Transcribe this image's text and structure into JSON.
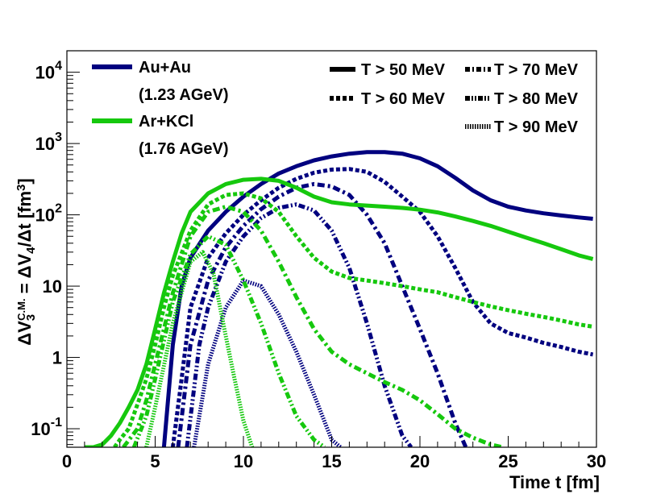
{
  "chart_data": {
    "type": "line",
    "xlabel": "Time t [fm]",
    "ylabel": {
      "prefix": "ΔV",
      "sub": "3",
      "sup": "C.M.",
      "middle": " = ΔV",
      "sub2": "4",
      "suffix": "/Δt [fm",
      "sup2": "3",
      "close": "]"
    },
    "xlim": [
      0,
      30
    ],
    "ylim": [
      0.055,
      20000
    ],
    "yscale": "log",
    "x_ticks": [
      "0",
      "5",
      "10",
      "15",
      "20",
      "25",
      "30"
    ],
    "y_ticks": [
      {
        "value": 0.1,
        "base": "10",
        "exp": "-1"
      },
      {
        "value": 1,
        "base": "1",
        "exp": ""
      },
      {
        "value": 10,
        "base": "10",
        "exp": ""
      },
      {
        "value": 100,
        "base": "10",
        "exp": "2"
      },
      {
        "value": 1000,
        "base": "10",
        "exp": "3"
      },
      {
        "value": 10000,
        "base": "10",
        "exp": "4"
      }
    ],
    "colors": {
      "auau": "#00007f",
      "arkcl": "#16c80e"
    },
    "legend_systems": [
      {
        "name": "Au+Au",
        "energy": "(1.23 AGeV)",
        "color": "#00007f"
      },
      {
        "name": "Ar+KCl",
        "energy": "(1.76 AGeV)",
        "color": "#16c80e"
      }
    ],
    "legend_thresholds": [
      {
        "label": "T > 50 MeV",
        "dash": "solid"
      },
      {
        "label": "T > 70 MeV",
        "dash": "dashdot"
      },
      {
        "label": "T > 60 MeV",
        "dash": "dash"
      },
      {
        "label": "T > 80 MeV",
        "dash": "dashdotdot"
      },
      {
        "label": "T > 90 MeV",
        "dash": "dot"
      }
    ],
    "series": [
      {
        "name": "Au+Au T > 50 MeV",
        "system": "auau",
        "dash": "solid",
        "x": [
          5.5,
          6,
          6.5,
          7,
          8,
          9,
          10,
          11,
          12,
          13,
          14,
          15,
          16,
          17,
          18,
          19,
          20,
          21,
          22,
          23,
          24,
          25,
          26,
          27,
          28,
          29,
          29.8
        ],
        "y": [
          0.055,
          1.5,
          10,
          25,
          60,
          110,
          180,
          270,
          380,
          480,
          580,
          660,
          720,
          760,
          760,
          720,
          620,
          480,
          330,
          220,
          160,
          130,
          115,
          105,
          98,
          92,
          88
        ]
      },
      {
        "name": "Au+Au T > 60 MeV",
        "system": "auau",
        "dash": "dash",
        "x": [
          6,
          6.5,
          7,
          8,
          9,
          10,
          11,
          12,
          13,
          14,
          15,
          16,
          17,
          18,
          19,
          20,
          21,
          22,
          23,
          24,
          25,
          26,
          27,
          28,
          29,
          29.8
        ],
        "y": [
          0.055,
          0.5,
          5,
          25,
          55,
          100,
          160,
          240,
          320,
          390,
          430,
          440,
          400,
          290,
          180,
          110,
          50,
          18,
          6,
          3,
          2.2,
          1.9,
          1.6,
          1.4,
          1.2,
          1.1
        ]
      },
      {
        "name": "Au+Au T > 70 MeV",
        "system": "auau",
        "dash": "dashdot",
        "x": [
          6.3,
          7,
          8,
          9,
          10,
          11,
          12,
          13,
          14,
          15,
          16,
          17,
          18,
          19,
          20,
          21,
          22,
          22.6
        ],
        "y": [
          0.055,
          1.5,
          12,
          35,
          70,
          120,
          180,
          240,
          270,
          250,
          190,
          100,
          40,
          10,
          2.5,
          0.6,
          0.12,
          0.055
        ]
      },
      {
        "name": "Au+Au T > 80 MeV",
        "system": "auau",
        "dash": "dashdotdot",
        "x": [
          6.8,
          7.5,
          8,
          9,
          10,
          11,
          12,
          13,
          14,
          15,
          16,
          17,
          18,
          19,
          19.5
        ],
        "y": [
          0.055,
          1.5,
          5,
          22,
          50,
          90,
          125,
          140,
          115,
          60,
          18,
          3,
          0.4,
          0.08,
          0.055
        ]
      },
      {
        "name": "Au+Au T > 90 MeV",
        "system": "auau",
        "dash": "dot",
        "x": [
          7.2,
          8,
          9,
          10,
          11,
          12,
          13,
          14,
          15,
          15.5
        ],
        "y": [
          0.055,
          0.8,
          5,
          12,
          10,
          4,
          1.2,
          0.3,
          0.07,
          0.055
        ]
      },
      {
        "name": "Ar+KCl T > 50 MeV",
        "system": "arkcl",
        "dash": "solid",
        "x": [
          1,
          1.5,
          2,
          2.5,
          3,
          3.5,
          4,
          4.5,
          5,
          5.5,
          6,
          6.5,
          7,
          8,
          9,
          10,
          11,
          12,
          13,
          14,
          15,
          16,
          17,
          18,
          19,
          20,
          21,
          22,
          23,
          24,
          25,
          26,
          27,
          28,
          29,
          29.8
        ],
        "y": [
          0.055,
          0.055,
          0.06,
          0.08,
          0.12,
          0.2,
          0.35,
          0.8,
          2.5,
          8,
          22,
          55,
          110,
          200,
          270,
          310,
          320,
          300,
          240,
          180,
          150,
          140,
          135,
          130,
          125,
          118,
          108,
          95,
          82,
          70,
          58,
          48,
          40,
          33,
          27,
          24
        ]
      },
      {
        "name": "Ar+KCl T > 60 MeV",
        "system": "arkcl",
        "dash": "dash",
        "x": [
          2.7,
          3,
          3.5,
          4,
          4.5,
          5,
          5.5,
          6,
          7,
          8,
          9,
          10,
          11,
          12,
          13,
          14,
          15,
          16,
          17,
          18,
          19,
          20,
          21,
          22,
          23,
          24,
          25,
          26,
          27,
          28,
          29,
          29.8
        ],
        "y": [
          0.055,
          0.07,
          0.1,
          0.22,
          0.5,
          1.5,
          5,
          14,
          60,
          140,
          190,
          200,
          170,
          110,
          50,
          25,
          16,
          13,
          12,
          11,
          10,
          9,
          8.2,
          7,
          6,
          5.2,
          4.6,
          4.1,
          3.7,
          3.3,
          2.9,
          2.7
        ]
      },
      {
        "name": "Ar+KCl T > 70 MeV",
        "system": "arkcl",
        "dash": "dashdot",
        "x": [
          3.2,
          4,
          4.5,
          5,
          6,
          7,
          8,
          9,
          10,
          11,
          12,
          13,
          14,
          15,
          16,
          17,
          18,
          19,
          20,
          21,
          22,
          23,
          24,
          24.7
        ],
        "y": [
          0.055,
          0.1,
          0.25,
          0.8,
          8,
          50,
          110,
          130,
          110,
          60,
          22,
          7,
          2.5,
          1.2,
          0.8,
          0.6,
          0.45,
          0.35,
          0.25,
          0.16,
          0.1,
          0.075,
          0.06,
          0.055
        ]
      },
      {
        "name": "Ar+KCl T > 80 MeV",
        "system": "arkcl",
        "dash": "dashdotdot",
        "x": [
          3.8,
          4.5,
          5,
          6,
          7,
          8,
          9,
          10,
          11,
          12,
          13,
          14,
          14.6
        ],
        "y": [
          0.055,
          0.15,
          0.5,
          6,
          28,
          50,
          38,
          12,
          3,
          0.6,
          0.15,
          0.07,
          0.055
        ]
      },
      {
        "name": "Ar+KCl T > 90 MeV",
        "system": "arkcl",
        "dash": "dot",
        "x": [
          4.5,
          5,
          6,
          7,
          7.7,
          8.3,
          9,
          9.5,
          10,
          10.5
        ],
        "y": [
          0.055,
          0.2,
          3,
          22,
          30,
          15,
          2,
          0.5,
          0.13,
          0.055
        ]
      }
    ]
  }
}
